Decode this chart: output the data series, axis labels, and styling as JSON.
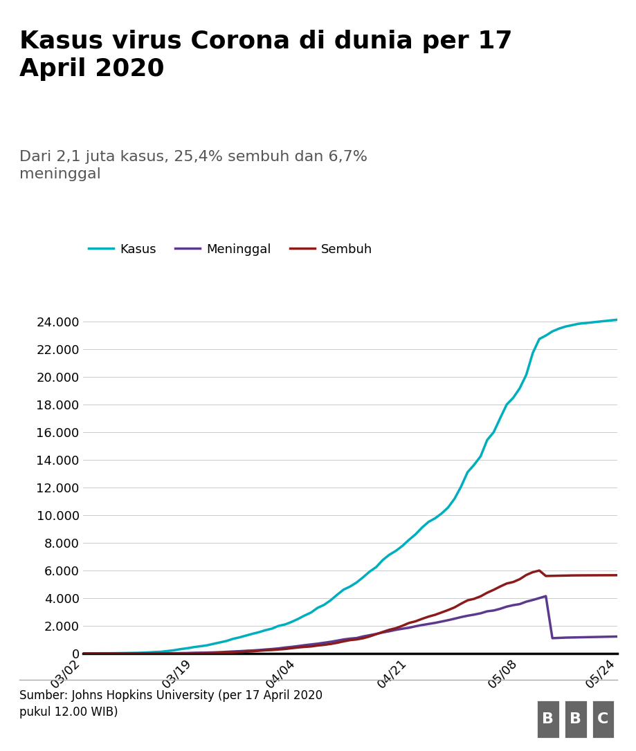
{
  "title": "Kasus virus Corona di dunia per 17\nApril 2020",
  "subtitle": "Dari 2,1 juta kasus, 25,4% sembuh dan 6,7%\nmeninggal",
  "source_text": "Sumber: Johns Hopkins University (per 17 April 2020\npukul 12.00 WIB)",
  "legend_labels": [
    "Kasus",
    "Meninggal",
    "Sembuh"
  ],
  "line_colors": [
    "#00AEBD",
    "#5B3A8E",
    "#8B1A1A"
  ],
  "x_tick_labels": [
    "03/02",
    "03/19",
    "04/04",
    "04/21",
    "05/08",
    "05/24"
  ],
  "x_tick_pos": [
    0,
    17,
    33,
    50,
    67,
    82
  ],
  "ytick_values": [
    0,
    2000,
    4000,
    6000,
    8000,
    10000,
    12000,
    14000,
    16000,
    18000,
    20000,
    22000,
    24000
  ],
  "ylim": [
    0,
    25000
  ],
  "background_color": "#FFFFFF",
  "kasus": [
    0,
    2,
    4,
    6,
    8,
    12,
    19,
    27,
    34,
    45,
    69,
    96,
    117,
    172,
    227,
    309,
    369,
    450,
    514,
    579,
    686,
    790,
    893,
    1046,
    1155,
    1285,
    1414,
    1532,
    1677,
    1790,
    1986,
    2092,
    2273,
    2491,
    2738,
    2956,
    3293,
    3512,
    3842,
    4241,
    4617,
    4839,
    5136,
    5516,
    5923,
    6248,
    6760,
    7135,
    7418,
    7775,
    8211,
    8607,
    9096,
    9511,
    9771,
    10118,
    10551,
    11192,
    12071,
    13112,
    13645,
    14265,
    15438,
    16006,
    17025,
    18010,
    18496,
    19189,
    20162,
    21745,
    22750,
    23000,
    23300,
    23500,
    23650,
    23750,
    23850,
    23900,
    23950,
    24000,
    24050,
    24100,
    24150
  ],
  "meninggal": [
    0,
    0,
    0,
    0,
    0,
    0,
    0,
    0,
    0,
    0,
    0,
    0,
    0,
    5,
    9,
    15,
    25,
    38,
    48,
    55,
    69,
    87,
    111,
    136,
    158,
    186,
    209,
    238,
    280,
    316,
    359,
    420,
    469,
    528,
    591,
    647,
    702,
    770,
    837,
    920,
    1007,
    1069,
    1111,
    1228,
    1316,
    1408,
    1513,
    1601,
    1703,
    1783,
    1852,
    1959,
    2049,
    2129,
    2206,
    2302,
    2400,
    2509,
    2625,
    2723,
    2805,
    2900,
    3043,
    3102,
    3226,
    3383,
    3489,
    3566,
    3743,
    3863,
    4001,
    4142,
    1100,
    1120,
    1140,
    1150,
    1160,
    1170,
    1180,
    1190,
    1200,
    1210,
    1220,
    1230
  ],
  "sembuh": [
    0,
    0,
    0,
    0,
    0,
    0,
    0,
    0,
    0,
    0,
    0,
    0,
    0,
    0,
    0,
    0,
    0,
    8,
    14,
    19,
    30,
    46,
    60,
    79,
    103,
    125,
    150,
    190,
    223,
    242,
    281,
    317,
    374,
    426,
    467,
    502,
    567,
    616,
    681,
    764,
    869,
    960,
    1010,
    1097,
    1228,
    1391,
    1553,
    1707,
    1823,
    1995,
    2197,
    2317,
    2494,
    2658,
    2789,
    2959,
    3133,
    3327,
    3594,
    3838,
    3947,
    4129,
    4386,
    4600,
    4838,
    5057,
    5165,
    5370,
    5673,
    5877,
    5995,
    5600,
    5610,
    5620,
    5630,
    5640,
    5645,
    5648,
    5650,
    5652,
    5654,
    5655,
    5656
  ]
}
